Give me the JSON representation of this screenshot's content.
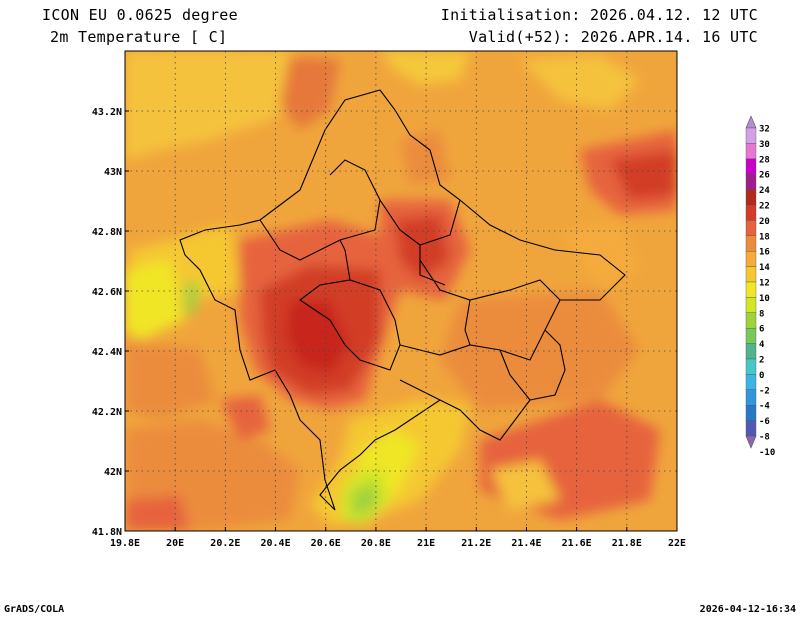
{
  "header": {
    "model": "ICON EU 0.0625 degree",
    "field": "2m Temperature [ C]",
    "init": "Initialisation: 2026.04.12. 12 UTC",
    "valid": "Valid(+52): 2026.APR.14. 16 UTC"
  },
  "footer": {
    "left": "GrADS/COLA",
    "right": "2026-04-12-16:34"
  },
  "map": {
    "lon_range": [
      19.8,
      22.0
    ],
    "lat_range": [
      41.8,
      43.4
    ],
    "lon_ticks": [
      "19.8E",
      "20E",
      "20.2E",
      "20.4E",
      "20.6E",
      "20.8E",
      "21E",
      "21.2E",
      "21.4E",
      "21.6E",
      "21.8E",
      "22E"
    ],
    "lat_ticks": [
      "41.8N",
      "42N",
      "42.2N",
      "42.4N",
      "42.6N",
      "42.8N",
      "43N",
      "43.2N"
    ],
    "grid": true
  },
  "colorbar": {
    "levels": [
      "32",
      "30",
      "28",
      "26",
      "24",
      "22",
      "20",
      "18",
      "16",
      "14",
      "12",
      "10",
      "8",
      "6",
      "4",
      "2",
      "0",
      "-2",
      "-4",
      "-6",
      "-8",
      "-10"
    ],
    "colors": [
      "#b48cd2",
      "#d2a0e6",
      "#e678d2",
      "#c800c8",
      "#a01e8c",
      "#b4281e",
      "#d23c28",
      "#e6643c",
      "#eb8c3c",
      "#f5aa3c",
      "#f5c832",
      "#f0e628",
      "#d2e628",
      "#a0d23c",
      "#78c85a",
      "#50b48c",
      "#46c8c8",
      "#3cb4e6",
      "#3296dc",
      "#2878c8",
      "#505ab4",
      "#8c64b4"
    ]
  }
}
